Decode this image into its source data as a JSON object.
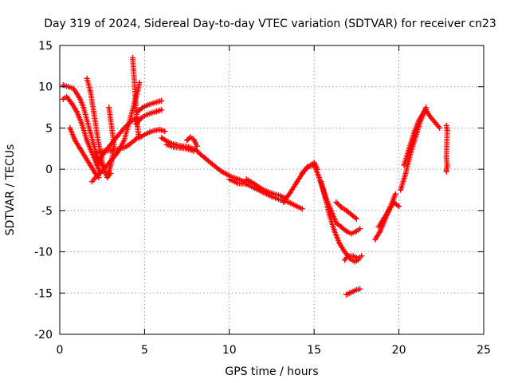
{
  "chart_data": {
    "type": "scatter",
    "title": "Day 319 of 2024, Sidereal Day-to-day VTEC variation (SDTVAR) for receiver cn23",
    "xlabel": "GPS time / hours",
    "ylabel": "SDTVAR / TECUs",
    "xlim": [
      0,
      25
    ],
    "ylim": [
      -20,
      15
    ],
    "xticks": [
      0,
      5,
      10,
      15,
      20,
      25
    ],
    "yticks": [
      -20,
      -15,
      -10,
      -5,
      0,
      5,
      10,
      15
    ],
    "grid": true,
    "marker": "+",
    "color": "#ff0000",
    "series": [
      {
        "name": "s1",
        "x": [
          0.2,
          0.5,
          0.8,
          1.0,
          1.2,
          1.4,
          1.6,
          1.8,
          2.0,
          2.2,
          2.5
        ],
        "y": [
          10.2,
          10.0,
          9.8,
          9.2,
          8.5,
          7.5,
          6.0,
          4.5,
          3.0,
          1.5,
          0.5
        ]
      },
      {
        "name": "s2",
        "x": [
          0.2,
          0.4,
          0.7,
          1.0,
          1.3,
          1.6,
          1.9,
          2.2,
          2.4
        ],
        "y": [
          8.5,
          8.8,
          8.0,
          7.0,
          5.5,
          3.5,
          2.0,
          0.5,
          -0.5
        ]
      },
      {
        "name": "s3",
        "x": [
          0.6,
          0.9,
          1.2,
          1.5,
          1.8,
          2.1,
          2.3
        ],
        "y": [
          5.0,
          3.5,
          2.5,
          1.5,
          0.5,
          -0.5,
          -1.0
        ]
      },
      {
        "name": "s4",
        "x": [
          1.6,
          1.8,
          2.0,
          2.3,
          2.6,
          2.8,
          3.0
        ],
        "y": [
          11.0,
          9.5,
          7.0,
          3.0,
          0.0,
          -1.0,
          -0.5
        ]
      },
      {
        "name": "s5",
        "x": [
          1.9,
          2.2,
          2.6,
          3.0,
          3.4,
          3.8,
          4.0,
          4.2,
          4.4,
          4.6,
          4.7
        ],
        "y": [
          -1.5,
          -0.8,
          0.0,
          1.0,
          2.0,
          3.5,
          5.0,
          6.5,
          8.0,
          9.5,
          10.5
        ]
      },
      {
        "name": "s6",
        "x": [
          2.2,
          2.6,
          3.0,
          3.4,
          3.8,
          4.2,
          4.5,
          4.7
        ],
        "y": [
          0.5,
          2.0,
          3.0,
          4.0,
          5.0,
          5.8,
          6.2,
          6.0
        ]
      },
      {
        "name": "s7",
        "x": [
          2.9,
          3.0,
          3.1,
          3.2,
          3.1,
          3.0,
          2.9,
          2.8
        ],
        "y": [
          7.5,
          6.0,
          4.5,
          3.0,
          1.5,
          0.5,
          -0.3,
          -0.8
        ]
      },
      {
        "name": "s8",
        "x": [
          2.2,
          2.6,
          3.0,
          3.4,
          3.8,
          4.1,
          4.4,
          4.7
        ],
        "y": [
          2.0,
          2.2,
          2.3,
          2.4,
          2.6,
          3.0,
          3.5,
          4.0
        ]
      },
      {
        "name": "s9",
        "x": [
          4.3,
          4.35,
          4.4,
          4.45,
          4.5,
          4.55,
          4.6,
          4.65
        ],
        "y": [
          13.5,
          12.0,
          10.5,
          9.0,
          7.5,
          6.0,
          5.0,
          4.0
        ]
      },
      {
        "name": "s10",
        "x": [
          4.6,
          4.9,
          5.2,
          5.5,
          5.8,
          6.0
        ],
        "y": [
          7.0,
          7.5,
          7.8,
          8.0,
          8.2,
          8.3
        ]
      },
      {
        "name": "s11",
        "x": [
          4.5,
          4.8,
          5.1,
          5.4,
          5.7,
          6.0
        ],
        "y": [
          5.5,
          6.2,
          6.6,
          6.8,
          7.0,
          7.2
        ]
      },
      {
        "name": "s12",
        "x": [
          4.7,
          5.0,
          5.3,
          5.6,
          5.9,
          6.2
        ],
        "y": [
          3.8,
          4.2,
          4.5,
          4.7,
          4.8,
          4.6
        ]
      },
      {
        "name": "s13",
        "x": [
          6.0,
          6.4,
          6.8,
          7.2,
          7.6,
          8.0,
          8.3,
          8.6,
          9.0,
          9.5,
          10.0,
          10.5,
          11.0
        ],
        "y": [
          3.8,
          3.3,
          3.0,
          2.8,
          2.7,
          2.4,
          1.8,
          1.3,
          0.6,
          -0.2,
          -0.8,
          -1.2,
          -1.6
        ]
      },
      {
        "name": "s14",
        "x": [
          6.3,
          6.7,
          7.1,
          7.5,
          7.9
        ],
        "y": [
          3.0,
          2.7,
          2.6,
          2.5,
          2.2
        ]
      },
      {
        "name": "s15",
        "x": [
          7.5,
          7.7,
          7.9,
          8.1
        ],
        "y": [
          3.5,
          3.9,
          3.6,
          2.8
        ]
      },
      {
        "name": "s16",
        "x": [
          10.0,
          10.5,
          11.0,
          11.5,
          12.0,
          12.5,
          13.0,
          13.5,
          14.0,
          14.3
        ],
        "y": [
          -1.2,
          -1.7,
          -1.8,
          -2.3,
          -2.8,
          -3.3,
          -3.7,
          -4.0,
          -4.5,
          -4.8
        ]
      },
      {
        "name": "s17",
        "x": [
          11.0,
          11.5,
          12.0,
          12.5,
          13.0,
          13.3
        ],
        "y": [
          -1.2,
          -1.8,
          -2.5,
          -2.9,
          -3.2,
          -3.5
        ]
      },
      {
        "name": "s18",
        "x": [
          13.2,
          13.6,
          14.0,
          14.4,
          14.8,
          15.0,
          15.2
        ],
        "y": [
          -4.0,
          -2.8,
          -1.5,
          -0.2,
          0.5,
          0.8,
          0.0
        ]
      },
      {
        "name": "s19",
        "x": [
          14.3,
          14.6,
          15.0,
          15.3,
          15.6,
          15.9,
          16.2,
          16.5,
          16.8,
          17.1,
          17.4,
          17.6
        ],
        "y": [
          -0.5,
          0.3,
          0.5,
          -1.0,
          -3.0,
          -5.5,
          -7.5,
          -9.0,
          -10.0,
          -10.8,
          -11.2,
          -11.0
        ]
      },
      {
        "name": "s20",
        "x": [
          15.4,
          15.7,
          16.0,
          16.3,
          16.6,
          16.9,
          17.2,
          17.5,
          17.7
        ],
        "y": [
          -1.5,
          -3.5,
          -5.0,
          -6.5,
          -7.0,
          -7.5,
          -7.8,
          -7.5,
          -7.2
        ]
      },
      {
        "name": "s21",
        "x": [
          16.3,
          16.6,
          16.9,
          17.2,
          17.5
        ],
        "y": [
          -4.0,
          -4.6,
          -5.0,
          -5.5,
          -6.0
        ]
      },
      {
        "name": "s22",
        "x": [
          16.8,
          17.0,
          17.3,
          17.6,
          17.8
        ],
        "y": [
          -11.0,
          -10.5,
          -10.5,
          -10.8,
          -10.5
        ]
      },
      {
        "name": "s23",
        "x": [
          16.9,
          17.1,
          17.3,
          17.5,
          17.7
        ],
        "y": [
          -15.2,
          -15.0,
          -14.8,
          -14.6,
          -14.5
        ]
      },
      {
        "name": "s24",
        "x": [
          18.6,
          18.9,
          19.2,
          19.5,
          19.8
        ],
        "y": [
          -8.5,
          -7.5,
          -6.0,
          -4.5,
          -3.0
        ]
      },
      {
        "name": "s25",
        "x": [
          18.8,
          19.1,
          19.4,
          19.7,
          20.0
        ],
        "y": [
          -7.0,
          -6.0,
          -5.0,
          -4.0,
          -4.5
        ]
      },
      {
        "name": "s26",
        "x": [
          20.1,
          20.4,
          20.7,
          21.0,
          21.3,
          21.6
        ],
        "y": [
          -2.5,
          -0.5,
          2.0,
          4.0,
          6.0,
          7.5
        ]
      },
      {
        "name": "s27",
        "x": [
          20.3,
          20.6,
          20.9,
          21.2,
          21.5
        ],
        "y": [
          0.5,
          2.5,
          4.5,
          6.0,
          7.0
        ]
      },
      {
        "name": "s28",
        "x": [
          21.6,
          21.8,
          22.0,
          22.2,
          22.4
        ],
        "y": [
          7.2,
          6.5,
          6.0,
          5.5,
          5.0
        ]
      },
      {
        "name": "s29",
        "x": [
          22.8,
          22.85,
          22.8,
          22.85,
          22.8,
          22.85,
          22.8
        ],
        "y": [
          5.3,
          4.7,
          1.5,
          0.3,
          -0.1,
          0.5,
          -0.3
        ]
      }
    ]
  }
}
